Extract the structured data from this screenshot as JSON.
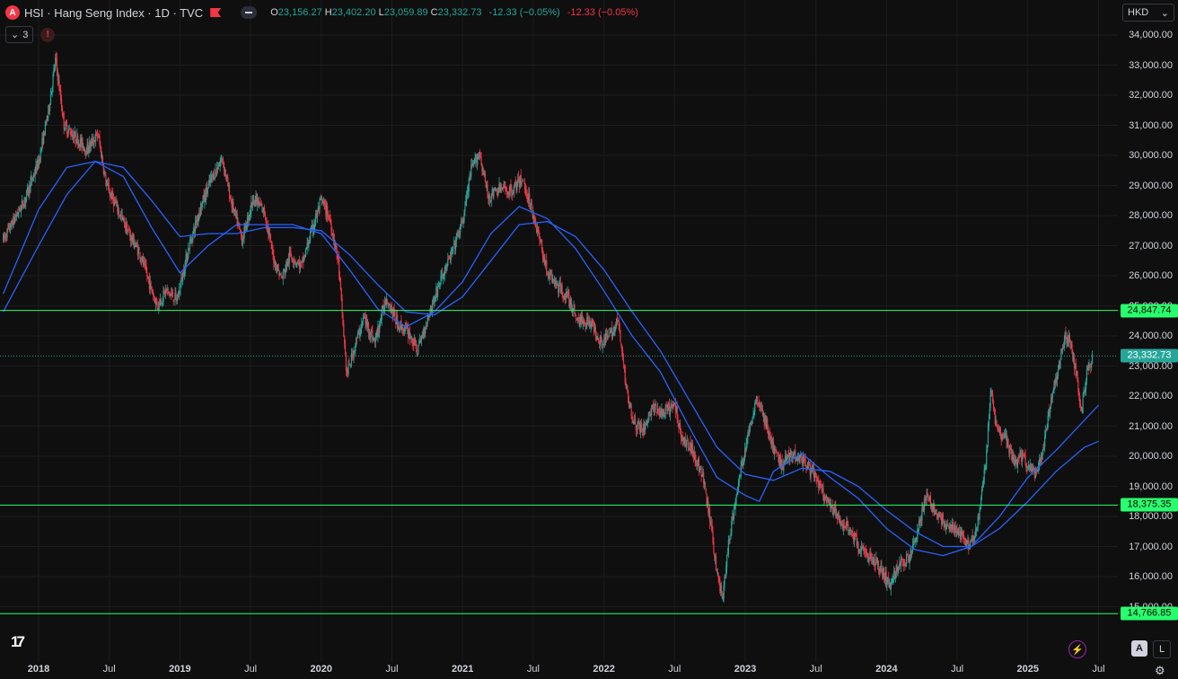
{
  "header": {
    "symbol_icon": "A",
    "title": "HSI · Hang Seng Index · 1D · TVC",
    "ohlc": [
      {
        "key": "O",
        "value": "23,156.27"
      },
      {
        "key": "H",
        "value": "23,402.20"
      },
      {
        "key": "L",
        "value": "23,059.89"
      },
      {
        "key": "C",
        "value": "23,332.73"
      }
    ],
    "change": "-12.33 (−0.05%)",
    "change_dup": "-12.33 (−0.05%)",
    "indicator_count": "3",
    "warn_icon": "!"
  },
  "currency": "HKD",
  "icons": {
    "flag": "flag-icon",
    "collapse": "collapse-icon",
    "chevron": "chevron-down-icon",
    "warning": "warning-icon",
    "logo": "tradingview-logo",
    "bolt": "lightning-icon",
    "settings": "gear-icon"
  },
  "colors": {
    "up": "#26a69a",
    "down": "#f23645",
    "ma_line": "#2962ff",
    "level_line": "#28ff6e",
    "background": "#0f0f0f"
  },
  "controls": {
    "auto": "A",
    "log": "L",
    "bolt": "⚡",
    "settings": "⚙"
  },
  "chart_data": {
    "type": "candlestick",
    "ylim": [
      14000,
      34500
    ],
    "y_ticks": [
      "34,000.00",
      "33,000.00",
      "32,000.00",
      "31,000.00",
      "30,000.00",
      "29,000.00",
      "28,000.00",
      "27,000.00",
      "26,000.00",
      "25,000.00",
      "24,000.00",
      "23,000.00",
      "22,000.00",
      "21,000.00",
      "20,000.00",
      "19,000.00",
      "18,000.00",
      "17,000.00",
      "16,000.00",
      "15,000.00"
    ],
    "x_ticks": [
      {
        "label": "2018",
        "t": 0.0,
        "major": true
      },
      {
        "label": "Jul",
        "t": 0.5
      },
      {
        "label": "2019",
        "t": 1.0,
        "major": true
      },
      {
        "label": "Jul",
        "t": 1.5
      },
      {
        "label": "2020",
        "t": 2.0,
        "major": true
      },
      {
        "label": "Jul",
        "t": 2.5
      },
      {
        "label": "2021",
        "t": 3.0,
        "major": true
      },
      {
        "label": "Jul",
        "t": 3.5
      },
      {
        "label": "2022",
        "t": 4.0,
        "major": true
      },
      {
        "label": "Jul",
        "t": 4.5
      },
      {
        "label": "2023",
        "t": 5.0,
        "major": true
      },
      {
        "label": "Jul",
        "t": 5.5
      },
      {
        "label": "2024",
        "t": 6.0,
        "major": true
      },
      {
        "label": "Jul",
        "t": 6.5
      },
      {
        "label": "2025",
        "t": 7.0,
        "major": true
      },
      {
        "label": "Jul",
        "t": 7.5
      }
    ],
    "levels": [
      {
        "value": 24847.74,
        "label": "24,847.74"
      },
      {
        "value": 18375.35,
        "label": "18,375.35"
      },
      {
        "value": 14766.85,
        "label": "14,766.85"
      }
    ],
    "last_price": {
      "value": 23332.73,
      "label": "23,332.73"
    },
    "price_path": [
      [
        -0.25,
        27200
      ],
      [
        -0.1,
        28500
      ],
      [
        0.0,
        29800
      ],
      [
        0.07,
        31500
      ],
      [
        0.12,
        33200
      ],
      [
        0.18,
        31000
      ],
      [
        0.26,
        30600
      ],
      [
        0.34,
        30200
      ],
      [
        0.42,
        30700
      ],
      [
        0.48,
        29000
      ],
      [
        0.56,
        28200
      ],
      [
        0.64,
        27400
      ],
      [
        0.72,
        26700
      ],
      [
        0.78,
        25800
      ],
      [
        0.84,
        25000
      ],
      [
        0.9,
        25500
      ],
      [
        0.98,
        25200
      ],
      [
        1.06,
        26900
      ],
      [
        1.14,
        28200
      ],
      [
        1.22,
        29200
      ],
      [
        1.3,
        29900
      ],
      [
        1.36,
        28500
      ],
      [
        1.44,
        27200
      ],
      [
        1.52,
        28600
      ],
      [
        1.6,
        28100
      ],
      [
        1.66,
        26600
      ],
      [
        1.72,
        25900
      ],
      [
        1.78,
        26700
      ],
      [
        1.86,
        26300
      ],
      [
        1.92,
        27300
      ],
      [
        2.0,
        28500
      ],
      [
        2.06,
        27900
      ],
      [
        2.12,
        26500
      ],
      [
        2.18,
        22700
      ],
      [
        2.24,
        23700
      ],
      [
        2.3,
        24600
      ],
      [
        2.38,
        23800
      ],
      [
        2.46,
        25300
      ],
      [
        2.54,
        24400
      ],
      [
        2.62,
        24100
      ],
      [
        2.68,
        23500
      ],
      [
        2.76,
        24700
      ],
      [
        2.84,
        25800
      ],
      [
        2.92,
        26700
      ],
      [
        3.0,
        27800
      ],
      [
        3.06,
        29500
      ],
      [
        3.12,
        30100
      ],
      [
        3.18,
        28600
      ],
      [
        3.26,
        28900
      ],
      [
        3.34,
        28800
      ],
      [
        3.42,
        29200
      ],
      [
        3.48,
        28400
      ],
      [
        3.54,
        27300
      ],
      [
        3.6,
        26100
      ],
      [
        3.68,
        25600
      ],
      [
        3.74,
        25300
      ],
      [
        3.82,
        24500
      ],
      [
        3.9,
        24500
      ],
      [
        3.98,
        23800
      ],
      [
        4.04,
        24000
      ],
      [
        4.1,
        24500
      ],
      [
        4.16,
        22200
      ],
      [
        4.22,
        21000
      ],
      [
        4.28,
        20900
      ],
      [
        4.34,
        21600
      ],
      [
        4.42,
        21400
      ],
      [
        4.5,
        21700
      ],
      [
        4.56,
        20500
      ],
      [
        4.62,
        20300
      ],
      [
        4.7,
        19300
      ],
      [
        4.76,
        17600
      ],
      [
        4.8,
        16100
      ],
      [
        4.84,
        15300
      ],
      [
        4.88,
        17000
      ],
      [
        4.93,
        18500
      ],
      [
        4.98,
        19800
      ],
      [
        5.04,
        21100
      ],
      [
        5.08,
        22000
      ],
      [
        5.14,
        21200
      ],
      [
        5.2,
        20200
      ],
      [
        5.26,
        19700
      ],
      [
        5.32,
        20100
      ],
      [
        5.38,
        20000
      ],
      [
        5.44,
        19700
      ],
      [
        5.5,
        19300
      ],
      [
        5.56,
        18600
      ],
      [
        5.62,
        18200
      ],
      [
        5.68,
        17800
      ],
      [
        5.74,
        17600
      ],
      [
        5.8,
        17000
      ],
      [
        5.86,
        16700
      ],
      [
        5.92,
        16500
      ],
      [
        5.98,
        16100
      ],
      [
        6.02,
        15700
      ],
      [
        6.08,
        16300
      ],
      [
        6.16,
        16700
      ],
      [
        6.22,
        17500
      ],
      [
        6.28,
        18700
      ],
      [
        6.34,
        18200
      ],
      [
        6.4,
        17800
      ],
      [
        6.46,
        17600
      ],
      [
        6.52,
        17400
      ],
      [
        6.58,
        17100
      ],
      [
        6.64,
        17600
      ],
      [
        6.7,
        19700
      ],
      [
        6.74,
        22300
      ],
      [
        6.78,
        20800
      ],
      [
        6.84,
        20600
      ],
      [
        6.9,
        19800
      ],
      [
        6.96,
        20000
      ],
      [
        7.02,
        19500
      ],
      [
        7.06,
        19400
      ],
      [
        7.1,
        20000
      ],
      [
        7.16,
        21800
      ],
      [
        7.22,
        23000
      ],
      [
        7.26,
        24000
      ],
      [
        7.3,
        23800
      ],
      [
        7.34,
        22800
      ],
      [
        7.38,
        21500
      ],
      [
        7.42,
        22800
      ],
      [
        7.46,
        23332
      ]
    ],
    "series": [
      {
        "name": "",
        "color": "#2962ff",
        "values": [
          [
            -0.25,
            25400
          ],
          [
            0.0,
            28200
          ],
          [
            0.2,
            29600
          ],
          [
            0.4,
            29800
          ],
          [
            0.6,
            29300
          ],
          [
            0.8,
            27600
          ],
          [
            1.0,
            26100
          ],
          [
            1.2,
            27000
          ],
          [
            1.4,
            27700
          ],
          [
            1.6,
            27700
          ],
          [
            1.8,
            27700
          ],
          [
            2.0,
            27400
          ],
          [
            2.2,
            26200
          ],
          [
            2.4,
            24900
          ],
          [
            2.6,
            24300
          ],
          [
            2.8,
            24800
          ],
          [
            3.0,
            25800
          ],
          [
            3.2,
            27400
          ],
          [
            3.4,
            28300
          ],
          [
            3.6,
            27900
          ],
          [
            3.8,
            26900
          ],
          [
            4.0,
            25500
          ],
          [
            4.2,
            24000
          ],
          [
            4.4,
            22800
          ],
          [
            4.6,
            21000
          ],
          [
            4.8,
            19300
          ],
          [
            5.0,
            18700
          ],
          [
            5.1,
            18500
          ],
          [
            5.2,
            19500
          ],
          [
            5.4,
            20100
          ],
          [
            5.6,
            19300
          ],
          [
            5.8,
            18600
          ],
          [
            6.0,
            17600
          ],
          [
            6.2,
            16900
          ],
          [
            6.4,
            16700
          ],
          [
            6.6,
            17000
          ],
          [
            6.8,
            18000
          ],
          [
            7.0,
            19300
          ],
          [
            7.2,
            20200
          ],
          [
            7.4,
            21200
          ],
          [
            7.5,
            21700
          ]
        ]
      },
      {
        "name": "",
        "color": "#2962ff",
        "values": [
          [
            -0.25,
            24800
          ],
          [
            0.0,
            27000
          ],
          [
            0.2,
            28700
          ],
          [
            0.4,
            29800
          ],
          [
            0.6,
            29600
          ],
          [
            0.8,
            28500
          ],
          [
            1.0,
            27300
          ],
          [
            1.2,
            27400
          ],
          [
            1.4,
            27400
          ],
          [
            1.6,
            27600
          ],
          [
            1.8,
            27600
          ],
          [
            2.0,
            27500
          ],
          [
            2.2,
            26700
          ],
          [
            2.4,
            25700
          ],
          [
            2.6,
            24800
          ],
          [
            2.8,
            24700
          ],
          [
            3.0,
            25300
          ],
          [
            3.2,
            26500
          ],
          [
            3.4,
            27700
          ],
          [
            3.6,
            27800
          ],
          [
            3.8,
            27300
          ],
          [
            4.0,
            26200
          ],
          [
            4.2,
            24800
          ],
          [
            4.4,
            23500
          ],
          [
            4.6,
            21900
          ],
          [
            4.8,
            20300
          ],
          [
            5.0,
            19400
          ],
          [
            5.2,
            19200
          ],
          [
            5.4,
            19600
          ],
          [
            5.6,
            19500
          ],
          [
            5.8,
            19000
          ],
          [
            6.0,
            18200
          ],
          [
            6.2,
            17500
          ],
          [
            6.4,
            17000
          ],
          [
            6.6,
            17000
          ],
          [
            6.8,
            17600
          ],
          [
            7.0,
            18500
          ],
          [
            7.2,
            19500
          ],
          [
            7.4,
            20300
          ],
          [
            7.5,
            20500
          ]
        ]
      }
    ]
  }
}
